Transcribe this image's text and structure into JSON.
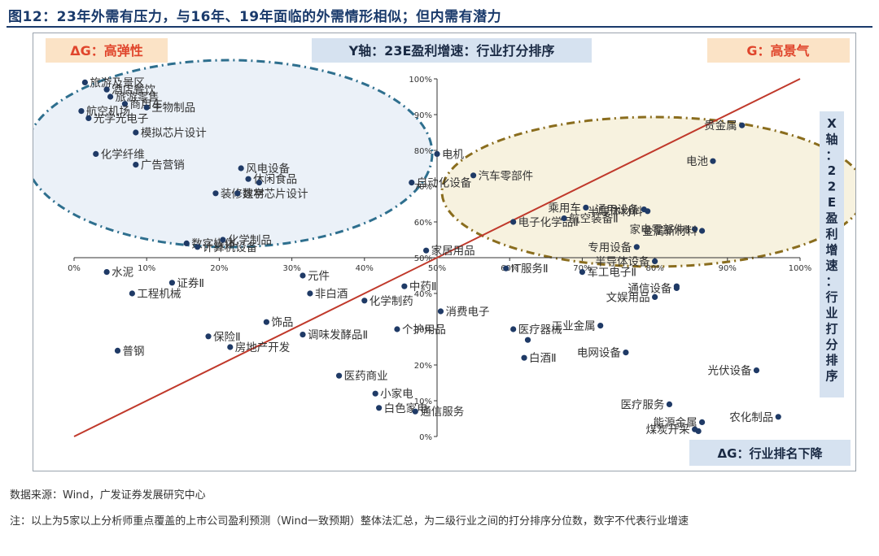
{
  "figure": {
    "title": "图12：23年外需有压力，与16年、19年面临的外需情形相似；但内需有潜力",
    "source": "数据来源：Wind，广发证券发展研究中心",
    "note": "注：以上为5家以上分析师重点覆盖的上市公司盈利预测（Wind一致预期）整体法汇总，为二级行业之间的打分排序分位数，数字不代表行业增速"
  },
  "colors": {
    "title": "#1a3a6b",
    "point": "#1f3a66",
    "diagonal": "#c0392b",
    "ellipse_left": "#2e6f8e",
    "ellipse_left_fill": "#dbe6f3",
    "ellipse_right": "#8a6d1e",
    "ellipse_right_fill": "#f4ecd2",
    "box_peach": "#fbe3c6",
    "box_blue": "#d6e2f0",
    "box_text_red": "#e0452c",
    "box_text_dark": "#1a2a44"
  },
  "chart_data": {
    "type": "scatter",
    "title": "",
    "xlabel": "X轴：22E盈利增速：行业打分排序",
    "ylabel": "Y轴：23E盈利增速：行业打分排序",
    "xlim": [
      0,
      100
    ],
    "ylim": [
      0,
      100
    ],
    "grid": false,
    "x_ticks": [
      "0%",
      "10%",
      "20%",
      "30%",
      "40%",
      "50%",
      "60%",
      "70%",
      "80%",
      "90%",
      "100%"
    ],
    "y_ticks": [
      "0%",
      "10%",
      "20%",
      "30%",
      "40%",
      "50%",
      "60%",
      "70%",
      "80%",
      "90%",
      "100%"
    ],
    "quadrant_labels": {
      "top_left": "ΔG：高弹性",
      "top_right": "G：高景气",
      "bottom_right": "ΔG：行业排名下降"
    },
    "points": [
      {
        "label": "旅游及景区",
        "x": 1.5,
        "y": 99
      },
      {
        "label": "酒店餐饮",
        "x": 4.5,
        "y": 97
      },
      {
        "label": "旅游零售",
        "x": 5,
        "y": 95
      },
      {
        "label": "商用车",
        "x": 7,
        "y": 93
      },
      {
        "label": "航空机场",
        "x": 1,
        "y": 91
      },
      {
        "label": "生物制品",
        "x": 10,
        "y": 92
      },
      {
        "label": "光学光电子",
        "x": 2,
        "y": 89
      },
      {
        "label": "模拟芯片设计",
        "x": 8.5,
        "y": 85
      },
      {
        "label": "化学纤维",
        "x": 3,
        "y": 79
      },
      {
        "label": "广告营销",
        "x": 8.5,
        "y": 76
      },
      {
        "label": "风电设备",
        "x": 23,
        "y": 75
      },
      {
        "label": "休闲食品",
        "x": 24,
        "y": 72
      },
      {
        "label": "",
        "x": 25.5,
        "y": 71
      },
      {
        "label": "自动化设备",
        "x": 46.5,
        "y": 71
      },
      {
        "label": "装修建材",
        "x": 19.5,
        "y": 68
      },
      {
        "label": "数字芯片设计",
        "x": 22.5,
        "y": 68
      },
      {
        "label": "电机",
        "x": 50,
        "y": 79
      },
      {
        "label": "汽车零部件",
        "x": 55,
        "y": 73
      },
      {
        "label": "数字媒体",
        "x": 15.5,
        "y": 54
      },
      {
        "label": "计算机设备",
        "x": 17,
        "y": 53
      },
      {
        "label": "化学制品",
        "x": 20.5,
        "y": 55
      },
      {
        "label": "家居用品",
        "x": 48.5,
        "y": 52
      },
      {
        "label": "贵金属",
        "x": 92,
        "y": 87
      },
      {
        "label": "电池",
        "x": 88,
        "y": 77
      },
      {
        "label": "乘用车",
        "x": 70.5,
        "y": 64
      },
      {
        "label": "通用设备",
        "x": 78.5,
        "y": 63.5
      },
      {
        "label": "电子化学品Ⅱ",
        "x": 60.5,
        "y": 60
      },
      {
        "label": "航空装备Ⅱ",
        "x": 67.5,
        "y": 61
      },
      {
        "label": "半导体材料",
        "x": 79,
        "y": 63
      },
      {
        "label": "专用设备",
        "x": 77.5,
        "y": 53
      },
      {
        "label": "家电零部件Ⅱ",
        "x": 85.5,
        "y": 58
      },
      {
        "label": "金属新材料",
        "x": 86.5,
        "y": 57.5
      },
      {
        "label": "水泥",
        "x": 4.5,
        "y": 46
      },
      {
        "label": "证券Ⅱ",
        "x": 13.5,
        "y": 43
      },
      {
        "label": "工程机械",
        "x": 8,
        "y": 40
      },
      {
        "label": "元件",
        "x": 31.5,
        "y": 45
      },
      {
        "label": "非白酒",
        "x": 32.5,
        "y": 40
      },
      {
        "label": "中药Ⅱ",
        "x": 45.5,
        "y": 42
      },
      {
        "label": "化学制药",
        "x": 40,
        "y": 38
      },
      {
        "label": "饰品",
        "x": 26.5,
        "y": 32
      },
      {
        "label": "保险Ⅱ",
        "x": 18.5,
        "y": 28
      },
      {
        "label": "调味发酵品Ⅱ",
        "x": 31.5,
        "y": 28.5
      },
      {
        "label": "个护用品",
        "x": 44.5,
        "y": 30
      },
      {
        "label": "房地产开发",
        "x": 21.5,
        "y": 25
      },
      {
        "label": "普钢",
        "x": 6,
        "y": 24
      },
      {
        "label": "消费电子",
        "x": 50.5,
        "y": 35
      },
      {
        "label": "IT服务Ⅱ",
        "x": 59.5,
        "y": 47
      },
      {
        "label": "军工电子Ⅱ",
        "x": 70,
        "y": 46
      },
      {
        "label": "半导体设备",
        "x": 80,
        "y": 49
      },
      {
        "label": "",
        "x": 83,
        "y": 42
      },
      {
        "label": "文娱用品",
        "x": 80,
        "y": 39
      },
      {
        "label": "通信设备",
        "x": 83,
        "y": 41.5
      },
      {
        "label": "医疗器械",
        "x": 60.5,
        "y": 30
      },
      {
        "label": "工业金属",
        "x": 72.5,
        "y": 31
      },
      {
        "label": "电网设备",
        "x": 76,
        "y": 23.5
      },
      {
        "label": "白酒Ⅱ",
        "x": 62,
        "y": 22
      },
      {
        "label": "",
        "x": 62.5,
        "y": 27
      },
      {
        "label": "光伏设备",
        "x": 94,
        "y": 18.5
      },
      {
        "label": "小家电",
        "x": 41.5,
        "y": 12
      },
      {
        "label": "医药商业",
        "x": 36.5,
        "y": 17
      },
      {
        "label": "白色家电",
        "x": 42,
        "y": 8
      },
      {
        "label": "通信服务",
        "x": 47,
        "y": 7
      },
      {
        "label": "医疗服务",
        "x": 82,
        "y": 9
      },
      {
        "label": "能源金属",
        "x": 86.5,
        "y": 4
      },
      {
        "label": "煤炭开采",
        "x": 85.5,
        "y": 2
      },
      {
        "label": "",
        "x": 86,
        "y": 1.5
      },
      {
        "label": "农化制品",
        "x": 97,
        "y": 5.5
      }
    ]
  }
}
